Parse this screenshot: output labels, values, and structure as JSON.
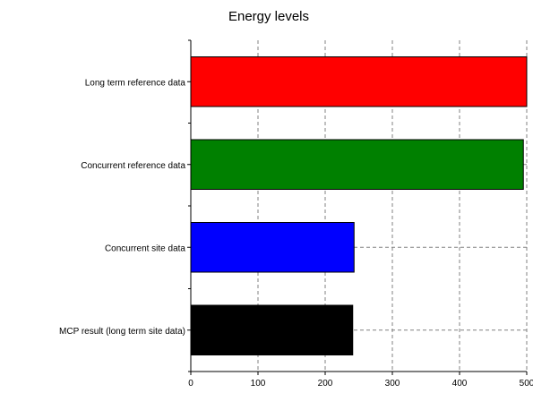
{
  "chart_data": {
    "type": "bar",
    "orientation": "horizontal",
    "title": "Energy levels",
    "xlabel": "",
    "ylabel": "",
    "categories": [
      "Long term reference data",
      "Concurrent reference data",
      "Concurrent site data",
      "MCP result (long term site data)"
    ],
    "values": [
      500,
      495,
      243,
      241
    ],
    "colors": [
      "#ff0000",
      "#008000",
      "#0000ff",
      "#000000"
    ],
    "xlim": [
      0,
      500
    ],
    "xticks": [
      0,
      100,
      200,
      300,
      400,
      500
    ],
    "grid": true,
    "legend": "none"
  }
}
